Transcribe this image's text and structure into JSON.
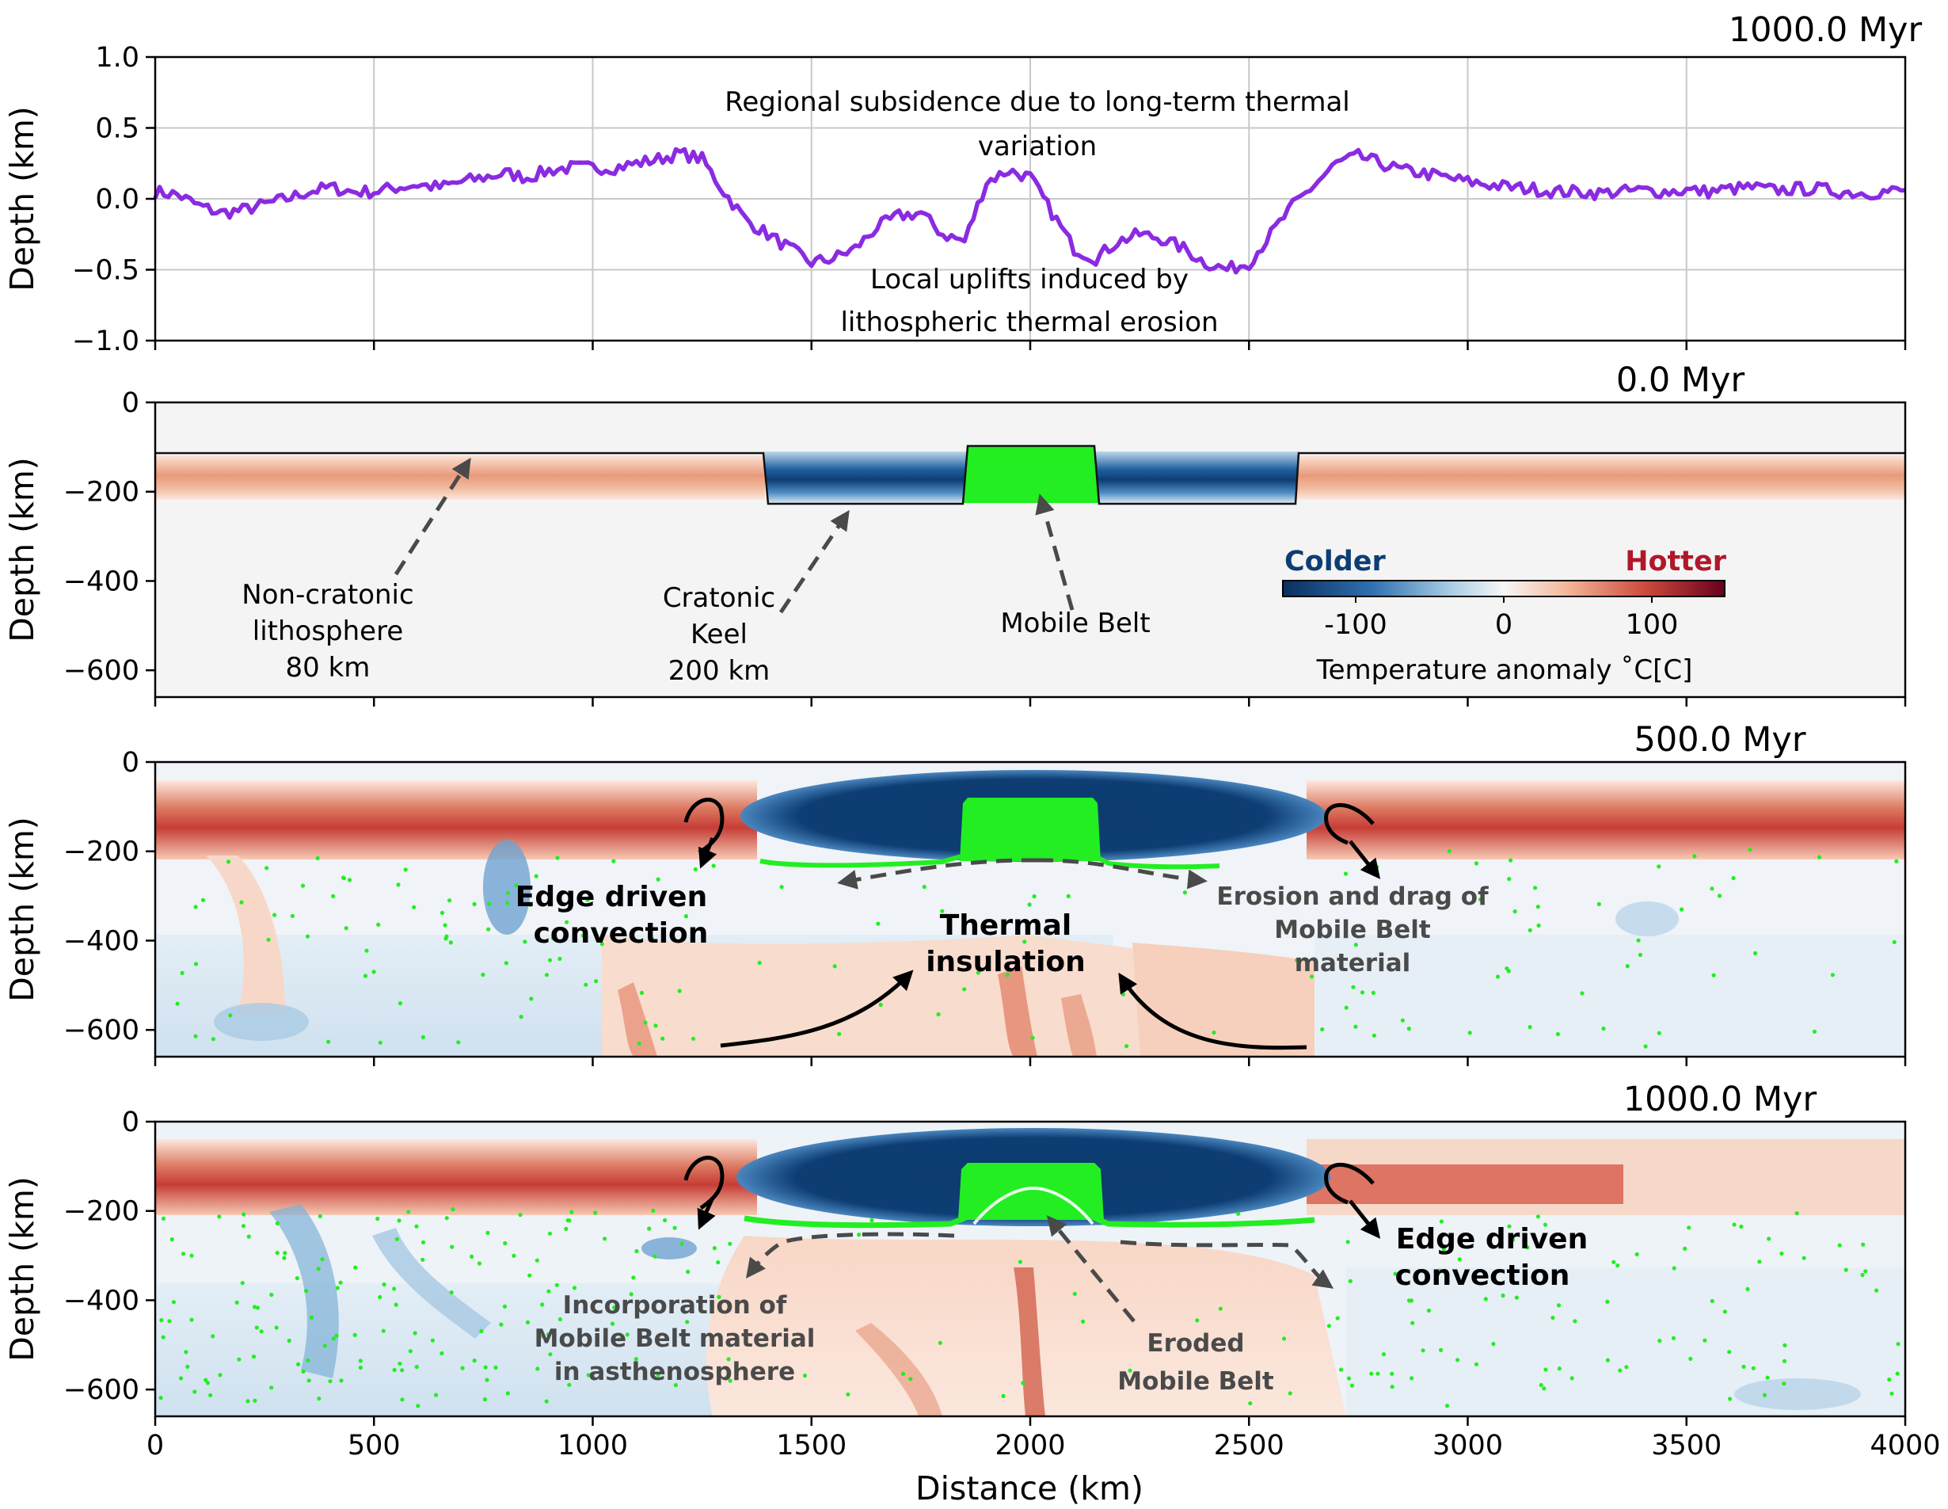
{
  "chart_data": [
    {
      "type": "line",
      "title": "1000.0 Myr",
      "ylabel": "Depth (km)",
      "xlim": [
        0,
        4000
      ],
      "ylim": [
        -1.0,
        1.0
      ],
      "yticks": [
        "1.0",
        "0.5",
        "0.0",
        "−0.5",
        "−1.0"
      ],
      "grid": true,
      "line_color": "#8a2be2",
      "x": [
        0,
        50,
        100,
        150,
        200,
        250,
        300,
        350,
        400,
        450,
        500,
        550,
        600,
        650,
        700,
        750,
        800,
        850,
        900,
        950,
        1000,
        1050,
        1100,
        1150,
        1200,
        1250,
        1300,
        1350,
        1400,
        1450,
        1500,
        1550,
        1600,
        1650,
        1700,
        1750,
        1800,
        1850,
        1900,
        1950,
        2000,
        2050,
        2100,
        2150,
        2200,
        2250,
        2300,
        2350,
        2400,
        2450,
        2500,
        2550,
        2600,
        2650,
        2700,
        2750,
        2800,
        2850,
        2900,
        2950,
        3000,
        3050,
        3100,
        3150,
        3200,
        3250,
        3300,
        3350,
        3400,
        3450,
        3500,
        3550,
        3600,
        3650,
        3700,
        3750,
        3800,
        3850,
        3900,
        3950,
        4000
      ],
      "y": [
        0.05,
        0.03,
        -0.05,
        -0.1,
        -0.08,
        -0.04,
        0.0,
        0.05,
        0.08,
        0.05,
        0.05,
        0.08,
        0.1,
        0.08,
        0.12,
        0.15,
        0.18,
        0.15,
        0.2,
        0.22,
        0.22,
        0.22,
        0.25,
        0.28,
        0.32,
        0.28,
        0.05,
        -0.15,
        -0.25,
        -0.35,
        -0.45,
        -0.42,
        -0.35,
        -0.2,
        -0.12,
        -0.1,
        -0.25,
        -0.3,
        0.12,
        0.2,
        0.15,
        -0.1,
        -0.35,
        -0.42,
        -0.3,
        -0.25,
        -0.28,
        -0.35,
        -0.45,
        -0.5,
        -0.45,
        -0.25,
        -0.05,
        0.1,
        0.25,
        0.3,
        0.25,
        0.2,
        0.18,
        0.15,
        0.12,
        0.1,
        0.08,
        0.07,
        0.05,
        0.05,
        0.04,
        0.05,
        0.06,
        0.05,
        0.06,
        0.05,
        0.07,
        0.08,
        0.06,
        0.07,
        0.07,
        0.05,
        0.04,
        0.05,
        0.06
      ],
      "annotations": [
        {
          "lines": [
            "Regional subsidence due to long-term thermal",
            "variation"
          ]
        },
        {
          "lines": [
            "Local uplifts induced by",
            "lithospheric thermal erosion"
          ]
        }
      ]
    },
    {
      "type": "heatmap",
      "title": "0.0 Myr",
      "ylabel": "Depth (km)",
      "ylim": [
        -660,
        0
      ],
      "yticks": [
        "0",
        "−200",
        "−400",
        "−600"
      ],
      "labels": [
        {
          "lines": [
            "Non-cratonic",
            "lithosphere",
            "80 km"
          ]
        },
        {
          "lines": [
            "Cratonic",
            "Keel",
            "200 km"
          ]
        },
        {
          "lines": [
            "Mobile Belt"
          ]
        }
      ],
      "colorbar": {
        "low_label": "Colder",
        "high_label": "Hotter",
        "ticks": [
          "-100",
          "0",
          "100"
        ],
        "title": "Temperature anomaly ˚C[C]",
        "low_color": "#0d3d73",
        "high_color": "#b0172a"
      }
    },
    {
      "type": "heatmap",
      "title": "500.0 Myr",
      "ylabel": "Depth (km)",
      "ylim": [
        -660,
        0
      ],
      "yticks": [
        "0",
        "−200",
        "−400",
        "−600"
      ],
      "labels": [
        {
          "lines": [
            "Edge driven",
            "convection"
          ]
        },
        {
          "lines": [
            "Thermal",
            "insulation"
          ]
        },
        {
          "lines": [
            "Erosion and drag of",
            "Mobile Belt",
            "material"
          ]
        }
      ]
    },
    {
      "type": "heatmap",
      "title": "1000.0 Myr",
      "ylabel": "Depth (km)",
      "xlabel": "Distance (km)",
      "ylim": [
        -660,
        0
      ],
      "yticks": [
        "0",
        "−200",
        "−400",
        "−600"
      ],
      "xticks": [
        "0",
        "500",
        "1000",
        "1500",
        "2000",
        "2500",
        "3000",
        "3500",
        "4000"
      ],
      "labels": [
        {
          "lines": [
            "Incorporation of",
            "Mobile Belt material",
            "in asthenosphere"
          ]
        },
        {
          "lines": [
            "Eroded",
            "Mobile Belt"
          ]
        },
        {
          "lines": [
            "Edge driven",
            "convection"
          ]
        }
      ]
    }
  ],
  "colors": {
    "hot": "#d6604d",
    "hot_dark": "#b2182b",
    "cold": "#0d3d73",
    "cold_light": "#c6dbef",
    "neutral": "#f4f4f4",
    "mobile_belt": "#22ee22"
  }
}
